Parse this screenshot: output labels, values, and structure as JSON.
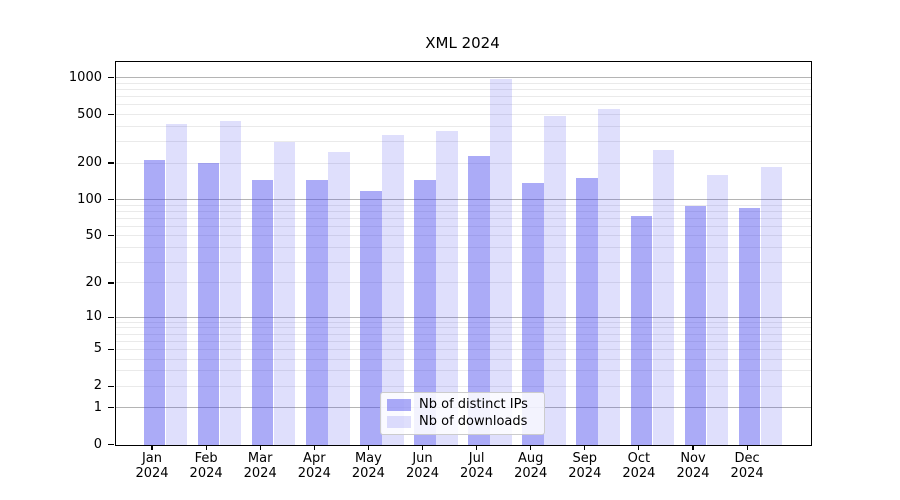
{
  "chart_data": {
    "type": "bar",
    "title": "XML 2024",
    "categories": [
      "Jan 2024",
      "Feb 2024",
      "Mar 2024",
      "Apr 2024",
      "May 2024",
      "Jun 2024",
      "Jul 2024",
      "Aug 2024",
      "Sep 2024",
      "Oct 2024",
      "Nov 2024",
      "Dec 2024"
    ],
    "series": [
      {
        "name": "Nb of distinct IPs",
        "color": "rgba(68,68,238,0.45)",
        "values": [
          210,
          200,
          145,
          145,
          117,
          145,
          230,
          138,
          151,
          73,
          88,
          86
        ]
      },
      {
        "name": "Nb of downloads",
        "color": "rgba(68,68,238,0.17)",
        "values": [
          415,
          440,
          300,
          245,
          340,
          370,
          985,
          490,
          555,
          257,
          160,
          185
        ]
      }
    ],
    "y_axis": {
      "scale": "log10(1+v)",
      "ticks": [
        0,
        1,
        2,
        5,
        10,
        20,
        50,
        100,
        200,
        500,
        1000
      ],
      "major_gridlines": [
        1,
        10,
        100,
        1000
      ],
      "minor_gridlines": [
        2,
        3,
        4,
        5,
        6,
        7,
        8,
        9,
        20,
        30,
        40,
        50,
        60,
        70,
        80,
        90,
        200,
        300,
        400,
        500,
        600,
        700,
        800,
        900
      ],
      "range": [
        0,
        1400
      ]
    },
    "legend_position": "lower center",
    "grid": true
  },
  "colors": {
    "grid_major": "#b4b4b4",
    "grid_minor": "#eaeaea",
    "axis": "#000000",
    "legend_border": "#cccccc"
  }
}
